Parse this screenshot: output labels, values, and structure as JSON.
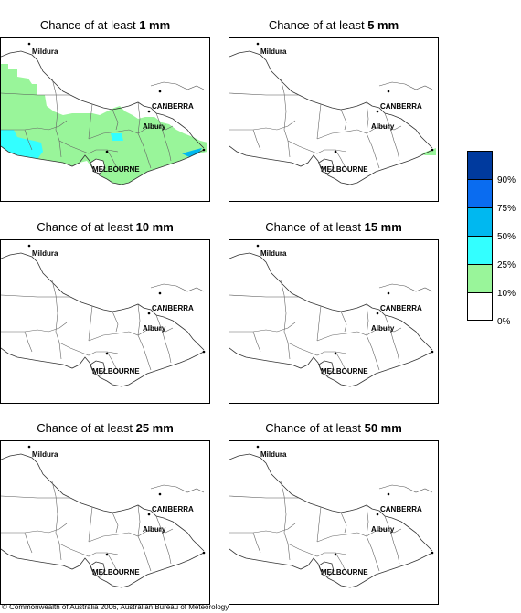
{
  "panels": [
    {
      "prefix": "Chance of at least ",
      "amount": "1 mm",
      "fill_level": "heavy"
    },
    {
      "prefix": "Chance of at least ",
      "amount": "5 mm",
      "fill_level": "trace"
    },
    {
      "prefix": "Chance of at least ",
      "amount": "10 mm",
      "fill_level": "none"
    },
    {
      "prefix": "Chance of at least ",
      "amount": "15 mm",
      "fill_level": "none"
    },
    {
      "prefix": "Chance of at least ",
      "amount": "25 mm",
      "fill_level": "none"
    },
    {
      "prefix": "Chance of at least ",
      "amount": "50 mm",
      "fill_level": "none"
    }
  ],
  "places": {
    "mildura": "Mildura",
    "canberra": "CANBERRA",
    "albury": "Albury",
    "melbourne": "MELBOURNE"
  },
  "legend": {
    "boxes": [
      {
        "color": "#003a9e"
      },
      {
        "color": "#0a6cf0"
      },
      {
        "color": "#00b8f0"
      },
      {
        "color": "#33ffff"
      },
      {
        "color": "#99f59a"
      },
      {
        "color": "#ffffff"
      }
    ],
    "ticks": [
      "90%",
      "75%",
      "50%",
      "25%",
      "10%",
      "0%"
    ]
  },
  "colors": {
    "green_10_25": "#99f59a",
    "cyan_25_50": "#33ffff",
    "blue_50_75": "#00b8f0"
  },
  "copyright": "© Commonwealth of Australia 2006, Australian Bureau of Meteorology"
}
